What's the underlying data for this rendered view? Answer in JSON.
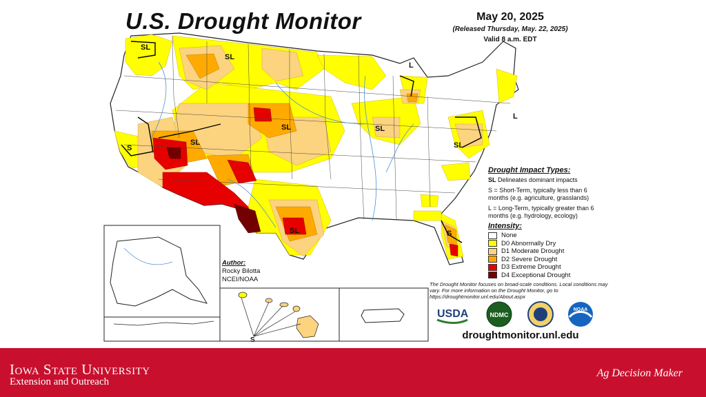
{
  "map": {
    "title": "U.S. Drought Monitor",
    "date": "May 20, 2025",
    "released": "(Released Thursday, May. 22, 2025)",
    "valid": "Valid 8 a.m. EDT",
    "labels": [
      "SL",
      "SL",
      "L",
      "S",
      "SL",
      "SL",
      "SL",
      "L",
      "SL",
      "SL",
      "S",
      "SL",
      "S"
    ],
    "colors": {
      "none": "#ffffff",
      "d0": "#ffff00",
      "d1": "#fcd37f",
      "d2": "#ffaa00",
      "d3": "#e60000",
      "d4": "#730000",
      "water": "#4a90d9"
    }
  },
  "impact": {
    "header": "Drought Impact Types:",
    "delineates": "Delineates dominant impacts",
    "short_term": "S = Short-Term, typically less than 6 months (e.g. agriculture, grasslands)",
    "long_term": "L = Long-Term, typically greater than 6 months (e.g. hydrology, ecology)",
    "symbol": "SL"
  },
  "intensity": {
    "header": "Intensity:",
    "items": [
      {
        "label": "None",
        "color": "#ffffff"
      },
      {
        "label": "D0 Abnormally Dry",
        "color": "#ffff00"
      },
      {
        "label": "D1 Moderate Drought",
        "color": "#fcd37f"
      },
      {
        "label": "D2 Severe Drought",
        "color": "#ffaa00"
      },
      {
        "label": "D3 Extreme Drought",
        "color": "#e60000"
      },
      {
        "label": "D4 Exceptional Drought",
        "color": "#730000"
      }
    ]
  },
  "author": {
    "header": "Author:",
    "name": "Rocky Bilotta",
    "org": "NCEI/NOAA"
  },
  "note": "The Drought Monitor focuses on broad-scale conditions. Local conditions may vary. For more information on the Drought Monitor, go to https://droughtmonitor.unl.edu/About.aspx",
  "logos": [
    "USDA",
    "NDMC",
    "NOAA"
  ],
  "site": "droughtmonitor.unl.edu",
  "footer": {
    "university": "Iowa State University",
    "extension": "Extension and Outreach",
    "brand": "Ag Decision Maker"
  },
  "inset_label": "S"
}
